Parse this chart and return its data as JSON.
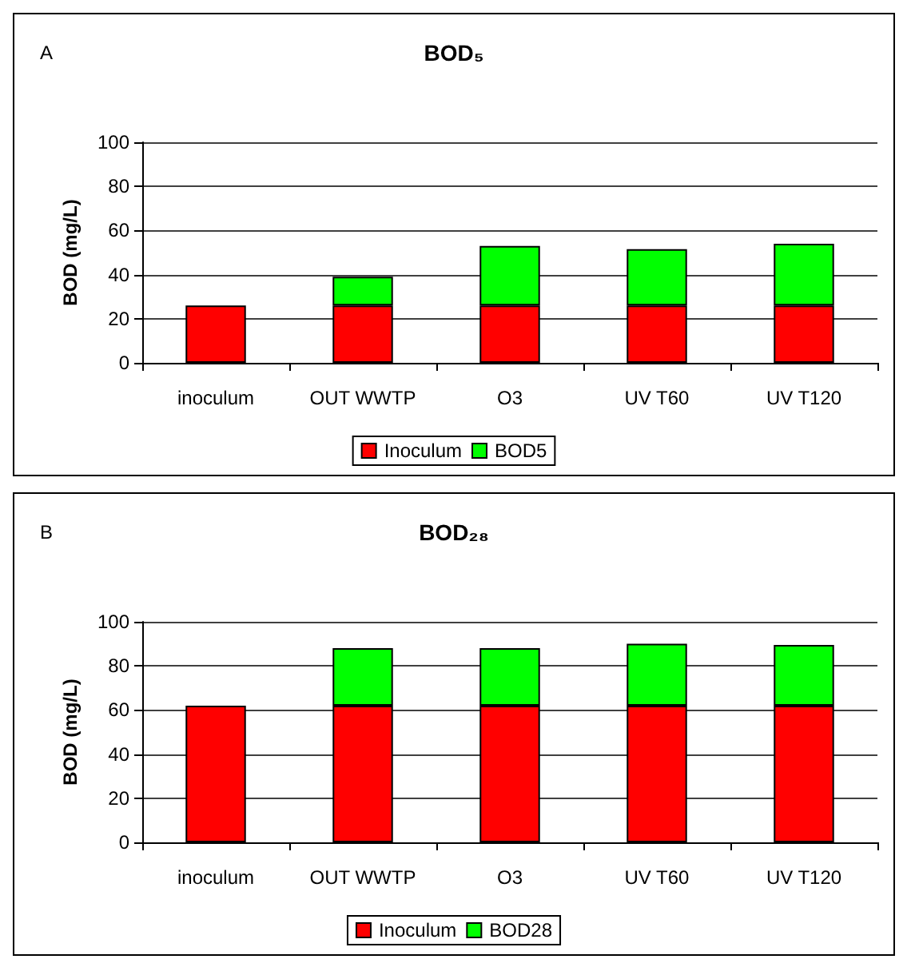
{
  "chart_data": [
    {
      "type": "bar",
      "title": "BOD₅",
      "ylabel": "BOD (mg/L)",
      "annotations": [
        "A"
      ],
      "categories": [
        "inoculum",
        "OUT WWTP",
        "O3",
        "UV T60",
        "UV T120"
      ],
      "stacked": true,
      "ylim": [
        0,
        100
      ],
      "yticks": [
        0,
        20,
        40,
        60,
        80,
        100
      ],
      "grid": "y",
      "legend": "bottom",
      "series": [
        {
          "name": "Inoculum",
          "color": "#ff0000",
          "values": [
            26,
            26,
            26,
            26,
            26
          ]
        },
        {
          "name": "BOD5",
          "color": "#00ff00",
          "values": [
            null,
            13,
            27,
            25.5,
            28
          ]
        }
      ]
    },
    {
      "type": "bar",
      "title": "BOD₂₈",
      "ylabel": "BOD (mg/L)",
      "annotations": [
        "B"
      ],
      "categories": [
        "inoculum",
        "OUT WWTP",
        "O3",
        "UV T60",
        "UV T120"
      ],
      "stacked": true,
      "ylim": [
        0,
        100
      ],
      "yticks": [
        0,
        20,
        40,
        60,
        80,
        100
      ],
      "grid": "y",
      "legend": "bottom",
      "series": [
        {
          "name": "Inoculum",
          "color": "#ff0000",
          "values": [
            62,
            62,
            62,
            62,
            62
          ]
        },
        {
          "name": "BOD28",
          "color": "#00ff00",
          "values": [
            null,
            26,
            26,
            28,
            27.5
          ]
        }
      ]
    }
  ]
}
